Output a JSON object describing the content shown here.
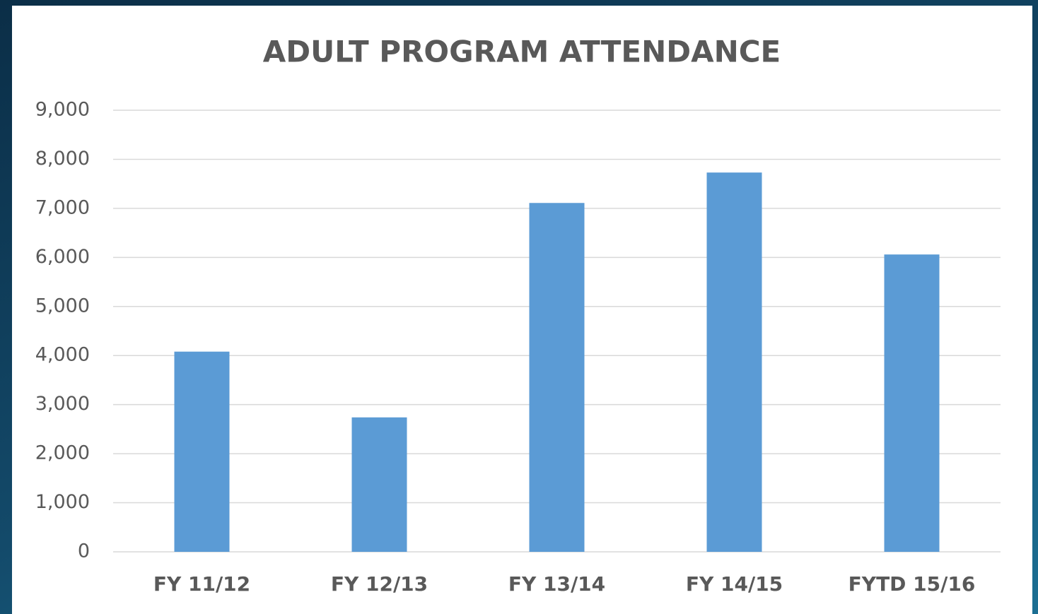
{
  "chart_data": {
    "type": "bar",
    "title": "ADULT PROGRAM ATTENDANCE",
    "categories": [
      "FY 11/12",
      "FY 12/13",
      "FY 13/14",
      "FY 14/15",
      "FYTD 15/16"
    ],
    "values": [
      4080,
      2740,
      7110,
      7730,
      6060
    ],
    "color": "#5b9bd5",
    "ylim": [
      0,
      9000
    ],
    "yticks": [
      0,
      {
        "value": 1000,
        "label": "1,000"
      },
      {
        "value": 2000,
        "label": "2,000"
      },
      {
        "value": 3000,
        "label": "3,000"
      },
      {
        "value": 4000,
        "label": "4,000"
      },
      {
        "value": 5000,
        "label": "5,000"
      },
      {
        "value": 6000,
        "label": "6,000"
      },
      {
        "value": 7000,
        "label": "7,000"
      },
      {
        "value": 8000,
        "label": "8,000"
      },
      {
        "value": 9000,
        "label": "9,000"
      }
    ],
    "grid": true
  }
}
